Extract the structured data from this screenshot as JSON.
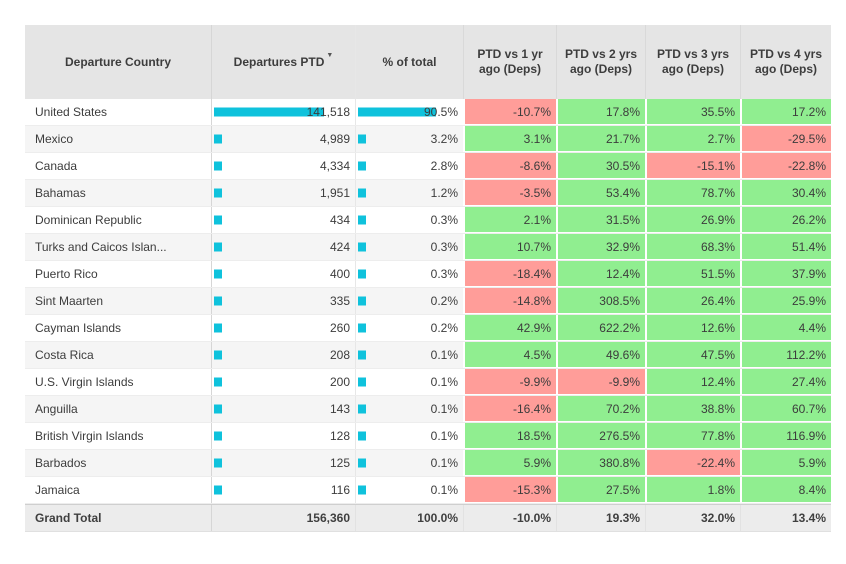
{
  "colors": {
    "bar": "#0FC2DC",
    "positive_bg": "#90EE90",
    "negative_bg": "#FF9D99",
    "header_bg": "#E5E5E5",
    "total_bg": "#ECECEC",
    "alt_row_bg": "#F5F5F5"
  },
  "sort": {
    "column": "Departures PTD",
    "direction": "descending",
    "icon": "▼"
  },
  "chart_data": {
    "type": "table",
    "columns": [
      "Departure Country",
      "Departures PTD",
      "% of total",
      "PTD vs 1 yr ago (Deps)",
      "PTD vs 2 yrs ago (Deps)",
      "PTD vs 3 yrs ago (Deps)",
      "PTD vs 4 yrs ago (Deps)"
    ],
    "bar_max": 141518,
    "pct_max": 90.5,
    "rows": [
      [
        "United States",
        141518,
        90.5,
        -10.7,
        17.8,
        35.5,
        17.2
      ],
      [
        "Mexico",
        4989,
        3.2,
        3.1,
        21.7,
        2.7,
        -29.5
      ],
      [
        "Canada",
        4334,
        2.8,
        -8.6,
        30.5,
        -15.1,
        -22.8
      ],
      [
        "Bahamas",
        1951,
        1.2,
        -3.5,
        53.4,
        78.7,
        30.4
      ],
      [
        "Dominican Republic",
        434,
        0.3,
        2.1,
        31.5,
        26.9,
        26.2
      ],
      [
        "Turks and Caicos Islan...",
        424,
        0.3,
        10.7,
        32.9,
        68.3,
        51.4
      ],
      [
        "Puerto Rico",
        400,
        0.3,
        -18.4,
        12.4,
        51.5,
        37.9
      ],
      [
        "Sint Maarten",
        335,
        0.2,
        -14.8,
        308.5,
        26.4,
        25.9
      ],
      [
        "Cayman Islands",
        260,
        0.2,
        42.9,
        622.2,
        12.6,
        4.4
      ],
      [
        "Costa Rica",
        208,
        0.1,
        4.5,
        49.6,
        47.5,
        112.2
      ],
      [
        "U.S. Virgin Islands",
        200,
        0.1,
        -9.9,
        -9.9,
        12.4,
        27.4
      ],
      [
        "Anguilla",
        143,
        0.1,
        -16.4,
        70.2,
        38.8,
        60.7
      ],
      [
        "British Virgin Islands",
        128,
        0.1,
        18.5,
        276.5,
        77.8,
        116.9
      ],
      [
        "Barbados",
        125,
        0.1,
        5.9,
        380.8,
        -22.4,
        5.9
      ],
      [
        "Jamaica",
        116,
        0.1,
        -15.3,
        27.5,
        1.8,
        8.4
      ]
    ],
    "total": [
      "Grand Total",
      156360,
      100.0,
      -10.0,
      19.3,
      32.0,
      13.4
    ]
  }
}
